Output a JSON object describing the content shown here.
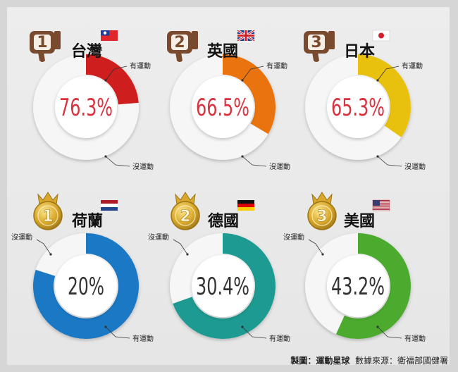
{
  "footer": {
    "made_by": "製圖：運動星球",
    "source": "數據來源：衛福部國健署"
  },
  "labels": {
    "active": "有運動",
    "inactive": "沒運動"
  },
  "colors": {
    "ring_base": "#f6f6f6",
    "center": "#ffffff",
    "value_red": "#d9333f",
    "value_dark": "#333333",
    "badge_brown": "#7a4a2e",
    "medal_gold": "#d8a72b"
  },
  "chart_data": [
    {
      "type": "pie",
      "group": "bottom",
      "rank": "1",
      "country": "台灣",
      "flag": "taiwan",
      "value_text": "76.3%",
      "values": {
        "inactive": 76.3,
        "active": 23.7
      },
      "accent": "#cf1e1e"
    },
    {
      "type": "pie",
      "group": "bottom",
      "rank": "2",
      "country": "英國",
      "flag": "uk",
      "value_text": "66.5%",
      "values": {
        "inactive": 66.5,
        "active": 33.5
      },
      "accent": "#e8730f"
    },
    {
      "type": "pie",
      "group": "bottom",
      "rank": "3",
      "country": "日本",
      "flag": "japan",
      "value_text": "65.3%",
      "values": {
        "inactive": 65.3,
        "active": 34.7
      },
      "accent": "#e8c10f"
    },
    {
      "type": "pie",
      "group": "top",
      "rank": "1",
      "country": "荷蘭",
      "flag": "netherlands",
      "value_text": "20%",
      "values": {
        "inactive": 20,
        "active": 80
      },
      "accent": "#1b78c4"
    },
    {
      "type": "pie",
      "group": "top",
      "rank": "2",
      "country": "德國",
      "flag": "germany",
      "value_text": "30.4%",
      "values": {
        "inactive": 30.4,
        "active": 69.6
      },
      "accent": "#1d9a91"
    },
    {
      "type": "pie",
      "group": "top",
      "rank": "3",
      "country": "美國",
      "flag": "usa",
      "value_text": "43.2%",
      "values": {
        "inactive": 43.2,
        "active": 56.8
      },
      "accent": "#4caa2f"
    }
  ]
}
